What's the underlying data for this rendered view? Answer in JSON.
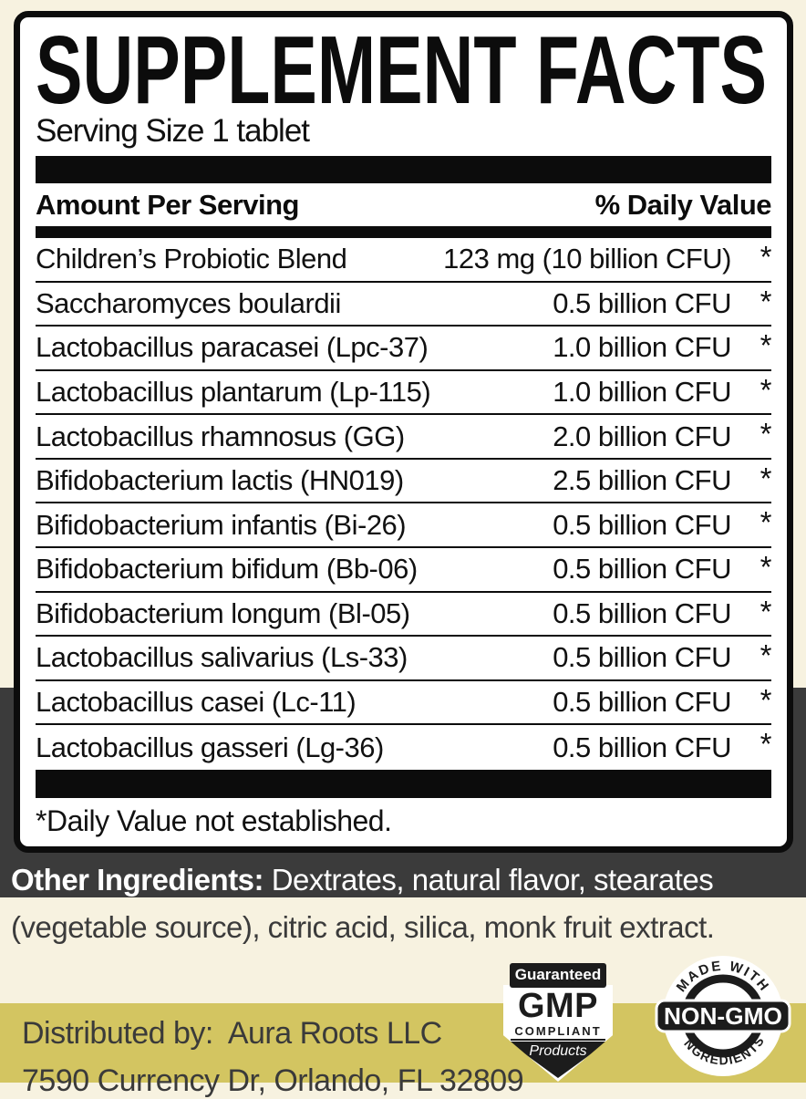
{
  "colors": {
    "background_cream": "#f7f2e0",
    "band_dark": "#3b3b3b",
    "band_khaki": "#d3c561",
    "panel_black": "#0c0c0c",
    "badge_black": "#1c1c1c"
  },
  "panel": {
    "title": "SUPPLEMENT FACTS",
    "serving_size": "Serving Size 1 tablet",
    "header": {
      "amount_label": "Amount Per Serving",
      "dv_label": "% Daily Value"
    },
    "rows": [
      {
        "name": "Children’s Probiotic Blend",
        "amount": "123 mg (10 billion CFU)",
        "dv": "*"
      },
      {
        "name": "Saccharomyces boulardii",
        "amount": "0.5 billion CFU",
        "dv": "*"
      },
      {
        "name": "Lactobacillus paracasei (Lpc-37)",
        "amount": "1.0 billion CFU",
        "dv": "*"
      },
      {
        "name": "Lactobacillus plantarum (Lp-115)",
        "amount": "1.0 billion CFU",
        "dv": "*"
      },
      {
        "name": "Lactobacillus rhamnosus (GG)",
        "amount": "2.0 billion CFU",
        "dv": "*"
      },
      {
        "name": "Bifidobacterium lactis (HN019)",
        "amount": "2.5 billion CFU",
        "dv": "*"
      },
      {
        "name": "Bifidobacterium infantis (Bi-26)",
        "amount": "0.5 billion CFU",
        "dv": "*"
      },
      {
        "name": "Bifidobacterium bifidum (Bb-06)",
        "amount": "0.5 billion CFU",
        "dv": "*"
      },
      {
        "name": "Bifidobacterium longum (Bl-05)",
        "amount": "0.5 billion CFU",
        "dv": "*"
      },
      {
        "name": "Lactobacillus salivarius (Ls-33)",
        "amount": "0.5 billion CFU",
        "dv": "*"
      },
      {
        "name": "Lactobacillus casei (Lc-11)",
        "amount": "0.5 billion CFU",
        "dv": "*"
      },
      {
        "name": "Lactobacillus gasseri (Lg-36)",
        "amount": "0.5 billion CFU",
        "dv": "*"
      }
    ],
    "footnote": "*Daily Value not established."
  },
  "other_ingredients": {
    "label": "Other Ingredients:",
    "line1_rest": " Dextrates, natural flavor, stearates",
    "line2": "(vegetable source), citric acid, silica, monk fruit extract."
  },
  "badges": {
    "gmp": {
      "top": "Guaranteed",
      "main": "GMP",
      "sub": "COMPLIANT",
      "bottom": "Products"
    },
    "non_gmo": {
      "arc_top": "MADE WITH",
      "center": "NON-GMO",
      "arc_bottom": "INGREDIENTS"
    }
  },
  "distributor": {
    "label": "Distributed by:",
    "name": "Aura Roots LLC",
    "address_line": "7590 Currency Dr, Orlando, FL 32809"
  }
}
